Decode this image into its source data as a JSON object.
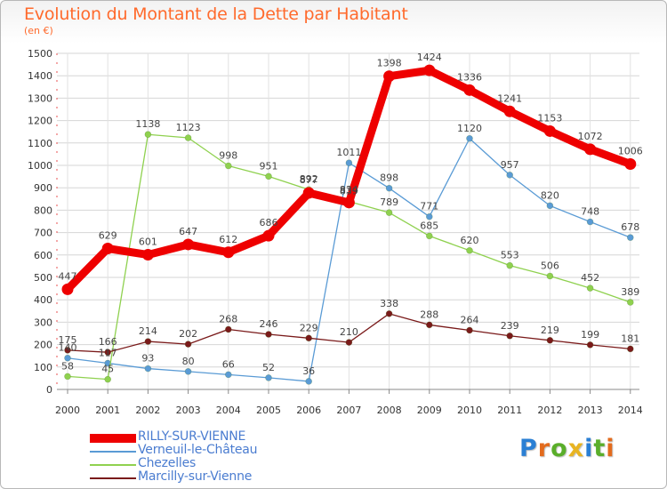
{
  "title": "Evolution du Montant de la Dette par Habitant",
  "subtitle": "(en €)",
  "brand": {
    "text": "Proxiti",
    "letter_colors": [
      "#2a7fd4",
      "#e36b1d",
      "#5aae2a",
      "#e8b421",
      "#2a7fd4",
      "#5aae2a",
      "#e36b1d"
    ]
  },
  "chart_data": {
    "type": "line",
    "title": "Evolution du Montant de la Dette par Habitant",
    "subtitle": "(en €)",
    "xlabel": "",
    "ylabel": "",
    "ylim": [
      0,
      1500
    ],
    "yticks": [
      0,
      100,
      200,
      300,
      400,
      500,
      600,
      700,
      800,
      900,
      1000,
      1100,
      1200,
      1300,
      1400,
      1500
    ],
    "x": [
      "2000",
      "2001",
      "2002",
      "2003",
      "2004",
      "2005",
      "2006",
      "2007",
      "2008",
      "2009",
      "2010",
      "2011",
      "2012",
      "2013",
      "2014"
    ],
    "grid": true,
    "legend_position": "bottom-left",
    "series": [
      {
        "name": "RILLY-SUR-VIENNE",
        "color": "#ee0000",
        "emphasis": true,
        "values": [
          447,
          629,
          601,
          647,
          612,
          686,
          877,
          834,
          1398,
          1424,
          1336,
          1241,
          1153,
          1072,
          1006
        ],
        "labels": [
          "447",
          "629",
          "601",
          "647",
          "612",
          "686",
          "877",
          "834",
          "1398",
          "1424",
          "1336",
          "1241",
          "1153",
          "1072",
          "1006"
        ]
      },
      {
        "name": "Verneuil-le-Château",
        "color": "#5a9bd5",
        "emphasis": false,
        "values": [
          140,
          117,
          93,
          80,
          66,
          52,
          36,
          1011,
          898,
          771,
          1120,
          957,
          820,
          748,
          678
        ],
        "labels": [
          "140",
          "117",
          "93",
          "80",
          "66",
          "52",
          "36",
          "1011",
          "898",
          "771",
          "1120",
          "957",
          "820",
          "748",
          "678"
        ]
      },
      {
        "name": "Chezelles",
        "color": "#8fd14f",
        "emphasis": false,
        "values": [
          58,
          45,
          1138,
          1123,
          998,
          951,
          892,
          839,
          789,
          685,
          620,
          553,
          506,
          452,
          389
        ],
        "labels": [
          "58",
          "45",
          "1138",
          "1123",
          "998",
          "951",
          "892",
          "839",
          "789",
          "685",
          "620",
          "553",
          "506",
          "452",
          "389"
        ]
      },
      {
        "name": "Marcilly-sur-Vienne",
        "color": "#7a1a1a",
        "emphasis": false,
        "values": [
          175,
          166,
          214,
          202,
          268,
          246,
          229,
          210,
          338,
          288,
          264,
          239,
          219,
          199,
          181
        ],
        "labels": [
          "175",
          "166",
          "214",
          "202",
          "268",
          "246",
          "229",
          "210",
          "338",
          "288",
          "264",
          "239",
          "219",
          "199",
          "181"
        ]
      }
    ]
  }
}
